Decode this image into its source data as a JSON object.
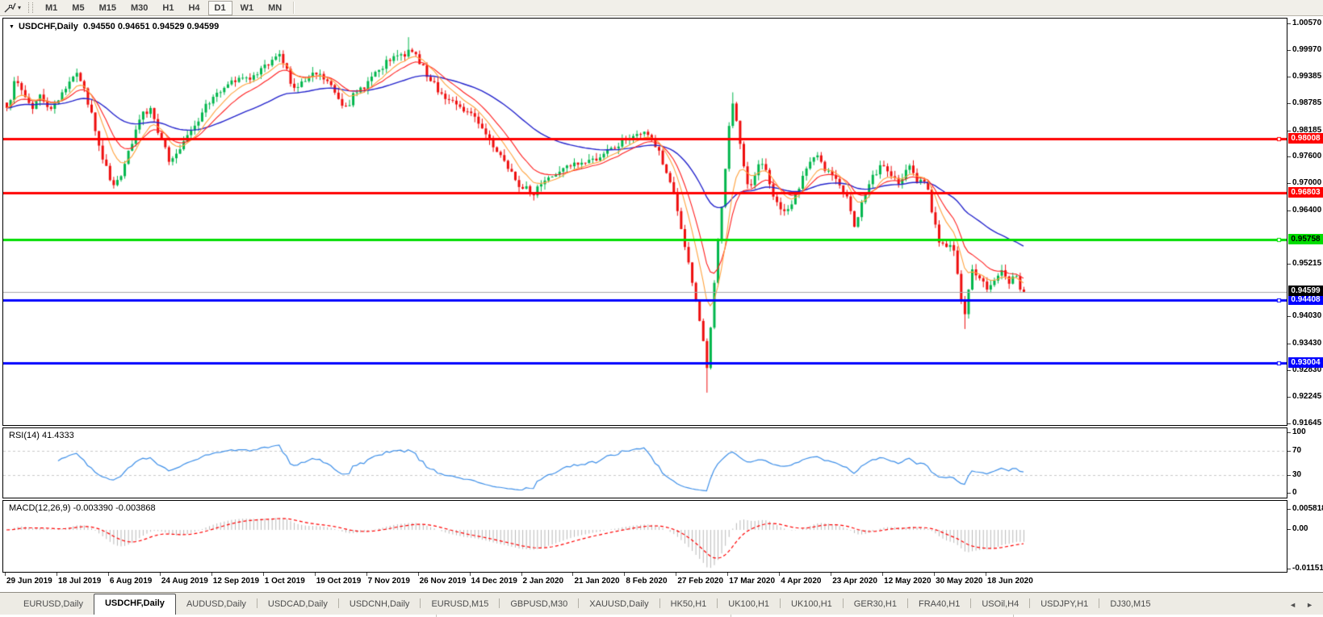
{
  "toolbar": {
    "timeframes": [
      "M1",
      "M5",
      "M15",
      "M30",
      "H1",
      "H4",
      "D1",
      "W1",
      "MN"
    ],
    "selected_timeframe": "D1",
    "dropdown_glyph": "▾"
  },
  "main_chart": {
    "collapse_glyph": "▼",
    "title": {
      "symbol": "USDCHF,Daily",
      "ohlc": "0.94550 0.94651 0.94529 0.94599"
    },
    "price_axis": {
      "ticks": [
        "1.00570",
        "0.99970",
        "0.99385",
        "0.98785",
        "0.98185",
        "0.97600",
        "0.97000",
        "0.96400",
        "0.95215",
        "0.94030",
        "0.93430",
        "0.92830",
        "0.92245",
        "0.91645"
      ]
    },
    "hlines": [
      {
        "price": 0.98008,
        "label": "0.98008",
        "color": "#ff0000",
        "width": 3,
        "label_bg": "#ff0000",
        "label_fg": "#ffffff",
        "handle": true
      },
      {
        "price": 0.96803,
        "label": "0.96803",
        "color": "#ff0000",
        "width": 3,
        "label_bg": "#ff0000",
        "label_fg": "#ffffff",
        "handle": false
      },
      {
        "price": 0.95758,
        "label": "0.95758",
        "color": "#00dd00",
        "width": 3,
        "label_bg": "#00dd00",
        "label_fg": "#000000",
        "handle": true
      },
      {
        "price": 0.94408,
        "label": "0.94408",
        "color": "#0000ff",
        "width": 3,
        "label_bg": "#0000ff",
        "label_fg": "#ffffff",
        "handle": true
      },
      {
        "price": 0.93004,
        "label": "0.93004",
        "color": "#0000ff",
        "width": 3,
        "label_bg": "#0000ff",
        "label_fg": "#ffffff",
        "handle": true
      }
    ],
    "current_price": {
      "value": "0.94599",
      "price": 0.94599,
      "line_color": "#a8a8a8",
      "label_bg": "#000000",
      "label_fg": "#ffffff"
    },
    "colors": {
      "bull": "#00b64c",
      "bear": "#ee0d0d",
      "ma_fast": "#ff1e1e",
      "ma_mid": "#ffa23e",
      "ma_slow": "#2424cc"
    }
  },
  "chart_data": {
    "type": "candlestick",
    "symbol": "USDCHF",
    "timeframe": "Daily",
    "title": "USDCHF,Daily",
    "ohlc_current": {
      "open": 0.9455,
      "high": 0.94651,
      "low": 0.94529,
      "close": 0.94599
    },
    "ylim": [
      0.91645,
      1.0057
    ],
    "n_bars": 277,
    "bars_per_label": 14,
    "horizontal_levels": [
      0.98008,
      0.96803,
      0.95758,
      0.94408,
      0.93004
    ],
    "series_anchors": [
      [
        0,
        0.987
      ],
      [
        2,
        0.993
      ],
      [
        4,
        0.991
      ],
      [
        7,
        0.9868
      ],
      [
        9,
        0.99
      ],
      [
        12,
        0.9868
      ],
      [
        15,
        0.9905
      ],
      [
        18,
        0.994
      ],
      [
        20,
        0.993
      ],
      [
        23,
        0.986
      ],
      [
        26,
        0.9755
      ],
      [
        29,
        0.9698
      ],
      [
        31,
        0.9718
      ],
      [
        34,
        0.979
      ],
      [
        37,
        0.9862
      ],
      [
        39,
        0.987
      ],
      [
        42,
        0.98
      ],
      [
        44,
        0.975
      ],
      [
        47,
        0.9778
      ],
      [
        50,
        0.982
      ],
      [
        53,
        0.986
      ],
      [
        56,
        0.9895
      ],
      [
        59,
        0.9915
      ],
      [
        62,
        0.9928
      ],
      [
        65,
        0.9938
      ],
      [
        68,
        0.9945
      ],
      [
        71,
        0.9965
      ],
      [
        73,
        0.9985
      ],
      [
        75,
        0.997
      ],
      [
        78,
        0.9915
      ],
      [
        81,
        0.993
      ],
      [
        84,
        0.9945
      ],
      [
        87,
        0.993
      ],
      [
        90,
        0.989
      ],
      [
        92,
        0.9875
      ],
      [
        95,
        0.9905
      ],
      [
        98,
        0.993
      ],
      [
        101,
        0.9955
      ],
      [
        104,
        0.9975
      ],
      [
        107,
        0.999
      ],
      [
        109,
        1.0
      ],
      [
        111,
        0.999
      ],
      [
        113,
        0.9965
      ],
      [
        115,
        0.993
      ],
      [
        117,
        0.9905
      ],
      [
        119,
        0.989
      ],
      [
        122,
        0.9878
      ],
      [
        125,
        0.9862
      ],
      [
        128,
        0.9835
      ],
      [
        131,
        0.98
      ],
      [
        134,
        0.9765
      ],
      [
        137,
        0.9728
      ],
      [
        140,
        0.969
      ],
      [
        142,
        0.968
      ],
      [
        144,
        0.9695
      ],
      [
        147,
        0.9715
      ],
      [
        150,
        0.9728
      ],
      [
        153,
        0.974
      ],
      [
        156,
        0.9748
      ],
      [
        159,
        0.9757
      ],
      [
        162,
        0.9768
      ],
      [
        165,
        0.978
      ],
      [
        168,
        0.98
      ],
      [
        171,
        0.9812
      ],
      [
        173,
        0.9817
      ],
      [
        175,
        0.98
      ],
      [
        177,
        0.9775
      ],
      [
        179,
        0.9725
      ],
      [
        181,
        0.968
      ],
      [
        182,
        0.964
      ],
      [
        184,
        0.956
      ],
      [
        186,
        0.948
      ],
      [
        188,
        0.9395
      ],
      [
        189,
        0.935
      ],
      [
        190,
        0.929
      ],
      [
        191,
        0.938
      ],
      [
        192,
        0.948
      ],
      [
        194,
        0.965
      ],
      [
        196,
        0.983
      ],
      [
        197,
        0.988
      ],
      [
        199,
        0.979
      ],
      [
        201,
        0.97
      ],
      [
        203,
        0.972
      ],
      [
        205,
        0.9745
      ],
      [
        207,
        0.97
      ],
      [
        209,
        0.966
      ],
      [
        211,
        0.964
      ],
      [
        213,
        0.9655
      ],
      [
        215,
        0.969
      ],
      [
        217,
        0.9735
      ],
      [
        219,
        0.976
      ],
      [
        221,
        0.975
      ],
      [
        223,
        0.973
      ],
      [
        225,
        0.9712
      ],
      [
        227,
        0.968
      ],
      [
        229,
        0.964
      ],
      [
        230,
        0.9605
      ],
      [
        232,
        0.966
      ],
      [
        234,
        0.97
      ],
      [
        236,
        0.9722
      ],
      [
        238,
        0.974
      ],
      [
        240,
        0.9718
      ],
      [
        242,
        0.97
      ],
      [
        244,
        0.9732
      ],
      [
        246,
        0.9725
      ],
      [
        248,
        0.971
      ],
      [
        250,
        0.9688
      ],
      [
        252,
        0.961
      ],
      [
        253,
        0.957
      ],
      [
        255,
        0.956
      ],
      [
        257,
        0.9552
      ],
      [
        258,
        0.95
      ],
      [
        259,
        0.944
      ],
      [
        260,
        0.941
      ],
      [
        261,
        0.9465
      ],
      [
        262,
        0.951
      ],
      [
        264,
        0.949
      ],
      [
        266,
        0.9465
      ],
      [
        268,
        0.9485
      ],
      [
        270,
        0.9508
      ],
      [
        272,
        0.9478
      ],
      [
        274,
        0.9495
      ],
      [
        275,
        0.9465
      ],
      [
        276,
        0.94599
      ]
    ],
    "wick_overrides": {
      "lows": {
        "190": 0.9235,
        "260": 0.9377
      },
      "highs": {
        "109": 1.0028,
        "197": 0.9905
      }
    },
    "moving_averages": [
      {
        "name": "fast",
        "period": 14,
        "color": "#ff1e1e"
      },
      {
        "name": "mid",
        "period": 8,
        "color": "#ffa23e"
      },
      {
        "name": "slow",
        "period": 45,
        "color": "#2424cc"
      }
    ],
    "x_labels": [
      "29 Jun 2019",
      "18 Jul 2019",
      "6 Aug 2019",
      "24 Aug 2019",
      "12 Sep 2019",
      "1 Oct 2019",
      "19 Oct 2019",
      "7 Nov 2019",
      "26 Nov 2019",
      "14 Dec 2019",
      "2 Jan 2020",
      "21 Jan 2020",
      "8 Feb 2020",
      "27 Feb 2020",
      "17 Mar 2020",
      "4 Apr 2020",
      "23 Apr 2020",
      "12 May 2020",
      "30 May 2020",
      "18 Jun 2020"
    ]
  },
  "rsi_panel": {
    "label_text": "RSI(14) 41.4333",
    "period": 14,
    "current_value": 41.4333,
    "line_color": "#3e8fe8",
    "levels": [
      {
        "v": 100,
        "label": "100",
        "dashed": false
      },
      {
        "v": 70,
        "label": "70",
        "dashed": true
      },
      {
        "v": 30,
        "label": "30",
        "dashed": true
      },
      {
        "v": 0,
        "label": "0",
        "dashed": false
      }
    ]
  },
  "macd_panel": {
    "label_text": "MACD(12,26,9) -0.003390 -0.003868",
    "fast": 12,
    "slow": 26,
    "signal": 9,
    "current_macd": -0.00339,
    "current_signal": -0.003868,
    "hist_color": "#b8b8b8",
    "signal_color": "#ff0000",
    "ticks": [
      {
        "v": 0.005818,
        "label": "0.005818"
      },
      {
        "v": 0,
        "label": "0.00"
      },
      {
        "v": -0.011514,
        "label": "-0.011514"
      }
    ]
  },
  "tab_bar": {
    "tabs": [
      "EURUSD,Daily",
      "USDCHF,Daily",
      "AUDUSD,Daily",
      "USDCAD,Daily",
      "USDCNH,Daily",
      "EURUSD,M15",
      "GBPUSD,M30",
      "XAUUSD,Daily",
      "HK50,H1",
      "UK100,H1",
      "UK100,H1",
      "GER30,H1",
      "FRA40,H1",
      "USOil,H4",
      "USDJPY,H1",
      "DJ30,M15"
    ],
    "active_index": 1,
    "scroll_left_glyph": "◄",
    "scroll_right_glyph": "►"
  }
}
